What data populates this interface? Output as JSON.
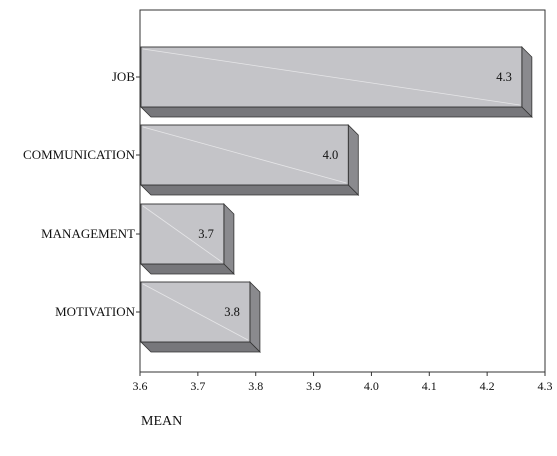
{
  "chart_data": {
    "type": "bar",
    "orientation": "horizontal",
    "categories": [
      "JOB",
      "COMMUNICATION",
      "MANAGEMENT",
      "MOTIVATION"
    ],
    "values": [
      4.26,
      3.96,
      3.745,
      3.79
    ],
    "data_labels": [
      "4.3",
      "4.0",
      "3.7",
      "3.8"
    ],
    "xlabel": "MEAN",
    "ylabel": "",
    "xlim": [
      3.6,
      4.3
    ],
    "x_ticks": [
      "3.6",
      "3.7",
      "3.8",
      "3.9",
      "4.0",
      "4.1",
      "4.2",
      "4.3"
    ],
    "grid": false,
    "legend": "none",
    "bar_color": "#c4c4c8",
    "bar_side_color": "#8a8a8e",
    "bar_bottom_color": "#77777b"
  }
}
